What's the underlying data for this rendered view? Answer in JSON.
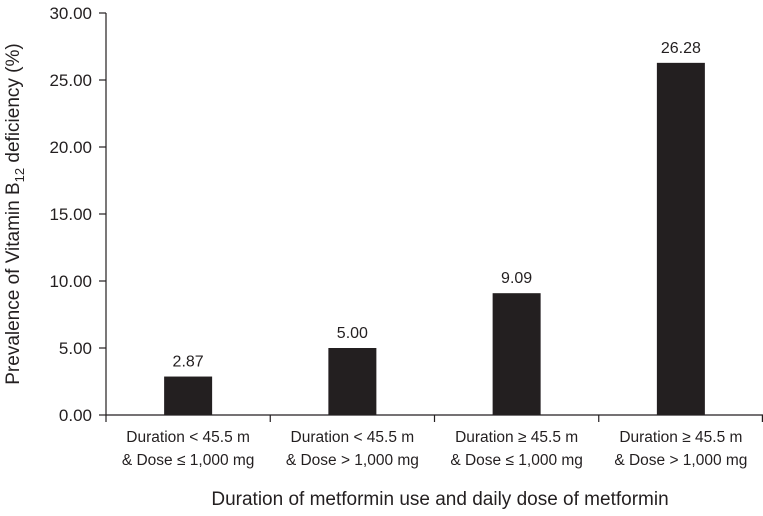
{
  "chart_data": {
    "type": "bar",
    "title": "",
    "xlabel": "Duration of metformin use and daily dose of metformin",
    "ylabel": {
      "prefix": "Prevalence of Vitamin B",
      "subscript": "12",
      "suffix": " deficiency (%)"
    },
    "categories": [
      [
        "Duration < 45.5 m",
        "& Dose ≤ 1,000 mg"
      ],
      [
        "Duration < 45.5 m",
        "& Dose > 1,000 mg"
      ],
      [
        "Duration ≥ 45.5 m",
        "& Dose ≤ 1,000 mg"
      ],
      [
        "Duration ≥ 45.5 m",
        "& Dose > 1,000 mg"
      ]
    ],
    "values": [
      2.87,
      5.0,
      9.09,
      26.28
    ],
    "data_labels": [
      "2.87",
      "5.00",
      "9.09",
      "26.28"
    ],
    "ylim": [
      0,
      30
    ],
    "yticks": [
      "0.00",
      "5.00",
      "10.00",
      "15.00",
      "20.00",
      "25.00",
      "30.00"
    ],
    "grid": false,
    "legend": "none",
    "bar_color": "#231f20"
  }
}
